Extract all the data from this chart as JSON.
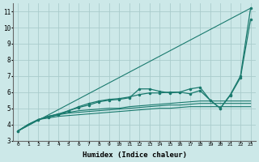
{
  "xlabel": "Humidex (Indice chaleur)",
  "background_color": "#cce8e8",
  "grid_color": "#aacccc",
  "line_color": "#1a7a6e",
  "xlim": [
    -0.5,
    23.5
  ],
  "ylim": [
    3.0,
    11.5
  ],
  "yticks": [
    3,
    4,
    5,
    6,
    7,
    8,
    9,
    10,
    11
  ],
  "xticks": [
    0,
    1,
    2,
    3,
    4,
    5,
    6,
    7,
    8,
    9,
    10,
    11,
    12,
    13,
    14,
    15,
    16,
    17,
    18,
    19,
    20,
    21,
    22,
    23
  ],
  "line_straight": {
    "x": [
      0,
      23
    ],
    "y": [
      3.6,
      11.2
    ]
  },
  "line_flat1": {
    "x": [
      0,
      1,
      2,
      3,
      4,
      5,
      6,
      7,
      8,
      9,
      10,
      11,
      12,
      13,
      14,
      15,
      16,
      17,
      18,
      19,
      20,
      21,
      22,
      23
    ],
    "y": [
      3.6,
      4.0,
      4.3,
      4.4,
      4.5,
      4.55,
      4.6,
      4.65,
      4.7,
      4.75,
      4.8,
      4.85,
      4.9,
      4.95,
      5.0,
      5.0,
      5.05,
      5.1,
      5.1,
      5.1,
      5.1,
      5.1,
      5.1,
      5.1
    ]
  },
  "line_flat2": {
    "x": [
      0,
      1,
      2,
      3,
      4,
      5,
      6,
      7,
      8,
      9,
      10,
      11,
      12,
      13,
      14,
      15,
      16,
      17,
      18,
      19,
      20,
      21,
      22,
      23
    ],
    "y": [
      3.6,
      4.0,
      4.3,
      4.5,
      4.6,
      4.7,
      4.75,
      4.8,
      4.85,
      4.9,
      4.95,
      5.0,
      5.05,
      5.1,
      5.15,
      5.2,
      5.2,
      5.25,
      5.3,
      5.3,
      5.3,
      5.3,
      5.3,
      5.3
    ]
  },
  "line_flat3": {
    "x": [
      0,
      1,
      2,
      3,
      4,
      5,
      6,
      7,
      8,
      9,
      10,
      11,
      12,
      13,
      14,
      15,
      16,
      17,
      18,
      19,
      20,
      21,
      22,
      23
    ],
    "y": [
      3.6,
      4.0,
      4.3,
      4.5,
      4.65,
      4.75,
      4.85,
      4.9,
      4.95,
      5.0,
      5.0,
      5.1,
      5.15,
      5.2,
      5.25,
      5.3,
      5.35,
      5.4,
      5.45,
      5.45,
      5.45,
      5.45,
      5.45,
      5.45
    ]
  },
  "line_marker1": {
    "x": [
      0,
      2,
      3,
      4,
      5,
      6,
      7,
      8,
      9,
      10,
      11,
      12,
      13,
      14,
      15,
      16,
      17,
      18,
      19,
      20,
      21,
      22,
      23
    ],
    "y": [
      3.6,
      4.3,
      4.45,
      4.6,
      4.85,
      5.05,
      5.2,
      5.4,
      5.5,
      5.55,
      5.65,
      6.2,
      6.2,
      6.05,
      5.95,
      6.0,
      6.2,
      6.3,
      5.5,
      5.0,
      5.8,
      6.9,
      10.5
    ]
  },
  "line_marker2": {
    "x": [
      0,
      2,
      3,
      4,
      5,
      6,
      7,
      8,
      9,
      10,
      11,
      12,
      13,
      14,
      15,
      16,
      17,
      18,
      19,
      20,
      21,
      22,
      23
    ],
    "y": [
      3.6,
      4.3,
      4.5,
      4.65,
      4.85,
      5.1,
      5.3,
      5.45,
      5.55,
      5.6,
      5.7,
      5.85,
      5.95,
      5.95,
      6.0,
      6.0,
      5.9,
      6.1,
      5.5,
      5.0,
      5.85,
      7.0,
      11.2
    ]
  }
}
